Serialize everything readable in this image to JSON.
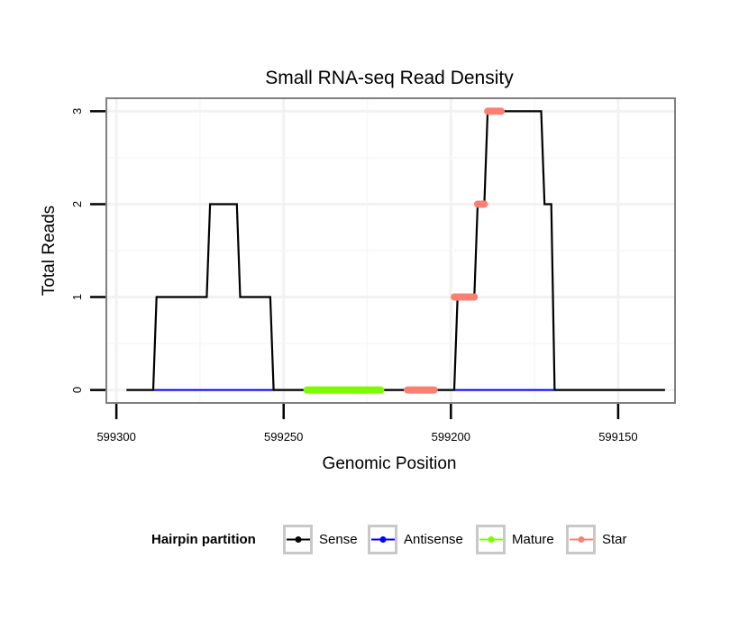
{
  "chart_data": {
    "type": "line",
    "title": "Small RNA-seq Read Density",
    "xlabel": "Genomic Position",
    "ylabel": "Total Reads",
    "xlim": [
      599303,
      599133
    ],
    "ylim": [
      -0.14,
      3.14
    ],
    "x_reversed": true,
    "grid": true,
    "x_ticks": [
      599300,
      599250,
      599200,
      599150
    ],
    "y_ticks": [
      0,
      1,
      2,
      3
    ],
    "x_tick_labels": [
      "599300",
      "599250",
      "599200",
      "599150"
    ],
    "y_tick_labels": [
      "0",
      "1",
      "2",
      "3"
    ],
    "legend": {
      "title": "Hairpin partition",
      "position": "bottom",
      "entries": [
        {
          "name": "Sense",
          "color": "#000000"
        },
        {
          "name": "Antisense",
          "color": "#0000ff"
        },
        {
          "name": "Mature",
          "color": "#7cfc00"
        },
        {
          "name": "Star",
          "color": "#fa8072"
        }
      ]
    },
    "series": [
      {
        "name": "Sense",
        "color": "#000000",
        "points": [
          [
            599297,
            0
          ],
          [
            599289,
            0
          ],
          [
            599288,
            1
          ],
          [
            599273,
            1
          ],
          [
            599272,
            2
          ],
          [
            599264,
            2
          ],
          [
            599263,
            1
          ],
          [
            599254,
            1
          ],
          [
            599253,
            0
          ],
          [
            599199,
            0
          ],
          [
            599198,
            1
          ],
          [
            599193,
            1
          ],
          [
            599192,
            2
          ],
          [
            599190,
            2
          ],
          [
            599189,
            3
          ],
          [
            599173,
            3
          ],
          [
            599172,
            2
          ],
          [
            599170,
            2
          ],
          [
            599169,
            0
          ],
          [
            599136,
            0
          ]
        ]
      },
      {
        "name": "Antisense",
        "color": "#0000ff",
        "points": [
          [
            599289,
            0
          ],
          [
            599253,
            0
          ],
          [
            599199,
            0
          ],
          [
            599169,
            0
          ]
        ]
      },
      {
        "name": "Mature",
        "color": "#7cfc00",
        "segments": [
          [
            599243,
            599221,
            0
          ]
        ]
      },
      {
        "name": "Star",
        "color": "#fa8072",
        "segments": [
          [
            599213,
            599205,
            0
          ],
          [
            599199,
            599193,
            1
          ],
          [
            599192,
            599190,
            2
          ],
          [
            599189,
            599185,
            3
          ]
        ]
      }
    ]
  }
}
